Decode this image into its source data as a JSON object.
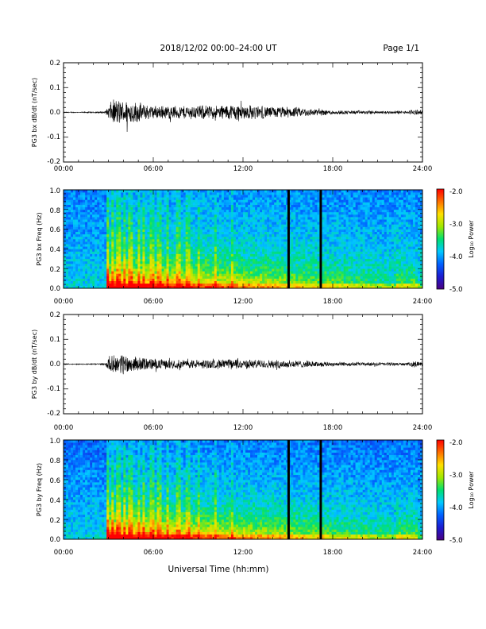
{
  "header": {
    "title": "2018/12/02  00:00–24:00 UT",
    "page": "Page 1/1"
  },
  "footer": {
    "xlabel": "Universal Time (hh:mm)"
  },
  "colors": {
    "colormap": [
      "#4b0082",
      "#1c1cd0",
      "#0060ff",
      "#00c8ff",
      "#00e070",
      "#a0e800",
      "#ffe000",
      "#ff7000",
      "#ff0000"
    ]
  },
  "chart_data": [
    {
      "type": "line",
      "ylabel": "PG3 bx dB/dt (nT/sec)",
      "xlim": [
        0,
        24
      ],
      "ylim": [
        -0.2,
        0.2
      ],
      "x_ticks": [
        "00:00",
        "06:00",
        "12:00",
        "18:00",
        "24:00"
      ],
      "y_ticks": [
        "0.2",
        "0.1",
        "0.0",
        "-0.1",
        "-0.2"
      ],
      "series": [
        {
          "x": [
            0,
            1,
            2,
            2.8,
            3.0,
            3.2,
            3.5,
            3.8,
            4.0,
            4.3,
            4.6,
            5.0,
            5.5,
            6.0,
            7.0,
            8.0,
            9.0,
            10.0,
            11.0,
            11.5,
            12.0,
            13.0,
            14.0,
            15.0,
            16.0,
            17.0,
            18.0,
            19.0,
            20.0,
            21.0,
            22.0,
            23.0,
            23.5,
            24.0
          ],
          "amplitude": [
            0.002,
            0.002,
            0.003,
            0.004,
            0.03,
            0.05,
            0.06,
            0.055,
            0.05,
            0.06,
            0.05,
            0.045,
            0.035,
            0.03,
            0.03,
            0.03,
            0.032,
            0.03,
            0.035,
            0.04,
            0.035,
            0.03,
            0.025,
            0.025,
            0.02,
            0.015,
            0.01,
            0.008,
            0.008,
            0.007,
            0.006,
            0.006,
            0.015,
            0.008
          ]
        }
      ]
    },
    {
      "type": "heatmap",
      "ylabel": "PG3 bx Freq (Hz)",
      "colorbar_label": "Log₁₀ Power",
      "colorbar_ticks": [
        "-2.0",
        "-3.0",
        "-4.0",
        "-5.0"
      ],
      "clim": [
        -5.0,
        -2.0
      ],
      "xlim": [
        0,
        24
      ],
      "ylim": [
        0.0,
        1.0
      ],
      "x_ticks": [
        "00:00",
        "06:00",
        "12:00",
        "18:00",
        "24:00"
      ],
      "y_ticks": [
        "1.0",
        "0.8",
        "0.6",
        "0.4",
        "0.2",
        "0.0"
      ],
      "data_gaps_hours": [
        15.05,
        17.2
      ]
    },
    {
      "type": "line",
      "ylabel": "PG3 by dB/dt (nT/sec)",
      "xlim": [
        0,
        24
      ],
      "ylim": [
        -0.2,
        0.2
      ],
      "x_ticks": [
        "00:00",
        "06:00",
        "12:00",
        "18:00",
        "24:00"
      ],
      "y_ticks": [
        "0.2",
        "0.1",
        "0.0",
        "-0.1",
        "-0.2"
      ],
      "series": [
        {
          "x": [
            0,
            1,
            2,
            2.8,
            3.0,
            3.2,
            3.5,
            3.8,
            4.0,
            4.3,
            4.6,
            5.0,
            5.5,
            6.0,
            7.0,
            8.0,
            9.0,
            10.0,
            11.0,
            11.5,
            12.0,
            13.0,
            14.0,
            15.0,
            16.0,
            17.0,
            18.0,
            19.0,
            20.0,
            21.0,
            22.0,
            23.0,
            23.5,
            24.0
          ],
          "amplitude": [
            0.002,
            0.002,
            0.003,
            0.004,
            0.03,
            0.035,
            0.04,
            0.045,
            0.05,
            0.04,
            0.035,
            0.03,
            0.03,
            0.025,
            0.02,
            0.02,
            0.02,
            0.02,
            0.022,
            0.025,
            0.02,
            0.02,
            0.018,
            0.02,
            0.015,
            0.012,
            0.01,
            0.009,
            0.008,
            0.008,
            0.007,
            0.006,
            0.015,
            0.008
          ]
        }
      ]
    },
    {
      "type": "heatmap",
      "ylabel": "PG3 by Freq (Hz)",
      "colorbar_label": "Log₁₀ Power",
      "colorbar_ticks": [
        "-2.0",
        "-3.0",
        "-4.0",
        "-5.0"
      ],
      "clim": [
        -5.0,
        -2.0
      ],
      "xlim": [
        0,
        24
      ],
      "ylim": [
        0.0,
        1.0
      ],
      "x_ticks": [
        "00:00",
        "06:00",
        "12:00",
        "18:00",
        "24:00"
      ],
      "y_ticks": [
        "1.0",
        "0.8",
        "0.6",
        "0.4",
        "0.2",
        "0.0"
      ],
      "data_gaps_hours": [
        15.05,
        17.2
      ]
    }
  ]
}
